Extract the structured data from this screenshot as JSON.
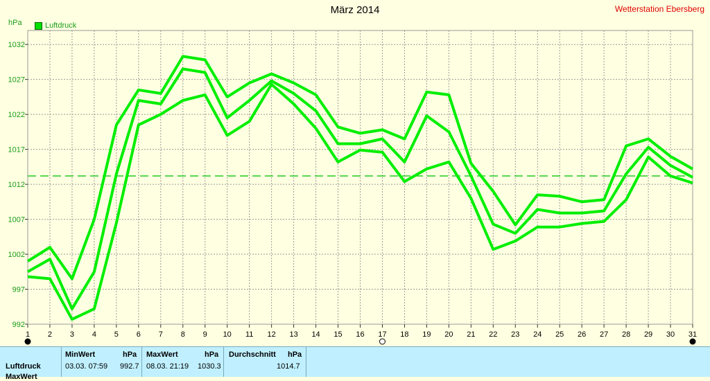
{
  "title": "März 2014",
  "station": "Wetterstation Ebersberg",
  "unit": "hPa",
  "legend": {
    "label": "Luftdruck",
    "color": "#00e000"
  },
  "colors": {
    "background": "#ffffe1",
    "line": "#00ee00",
    "grid": "#9a9a9a",
    "axis_text": "#1a9c1a",
    "average_line": "#22cc22",
    "stats_bg": "#c0f0ff"
  },
  "chart_data": {
    "type": "line",
    "ylim": [
      992,
      1034
    ],
    "yticks": [
      992,
      997,
      1002,
      1007,
      1012,
      1017,
      1022,
      1027,
      1032
    ],
    "xticks": [
      "1",
      "2",
      "3",
      "4",
      "5",
      "6",
      "7",
      "8",
      "9",
      "10",
      "11",
      "12",
      "13",
      "14",
      "15",
      "16",
      "17",
      "18",
      "19",
      "20",
      "21",
      "22",
      "23",
      "24",
      "25",
      "26",
      "27",
      "28",
      "29",
      "30",
      "31"
    ],
    "x": [
      1,
      2,
      3,
      4,
      5,
      6,
      7,
      8,
      9,
      10,
      11,
      12,
      13,
      14,
      15,
      16,
      17,
      18,
      19,
      20,
      21,
      22,
      23,
      24,
      25,
      26,
      27,
      28,
      29,
      30,
      31
    ],
    "grid": true,
    "average": 1013.2,
    "series": [
      {
        "values": [
          1001.0,
          1003.0,
          998.5,
          1007.0,
          1020.5,
          1025.5,
          1025.0,
          1030.3,
          1029.8,
          1024.5,
          1026.5,
          1027.8,
          1026.5,
          1024.8,
          1020.2,
          1019.3,
          1019.8,
          1018.5,
          1025.2,
          1024.8,
          1015.0,
          1011.0,
          1006.2,
          1010.5,
          1010.3,
          1009.5,
          1009.8,
          1017.5,
          1018.5,
          1016.0,
          1014.2
        ]
      },
      {
        "values": [
          999.5,
          1001.3,
          994.2,
          999.5,
          1013.5,
          1024.0,
          1023.5,
          1028.5,
          1028.0,
          1021.5,
          1024.0,
          1026.8,
          1025.0,
          1022.5,
          1017.8,
          1017.8,
          1018.5,
          1015.2,
          1021.8,
          1019.5,
          1013.2,
          1006.3,
          1005.0,
          1008.4,
          1007.9,
          1007.9,
          1008.2,
          1013.5,
          1017.3,
          1014.7,
          1013.0
        ]
      },
      {
        "values": [
          998.8,
          998.5,
          992.7,
          994.2,
          1006.5,
          1020.5,
          1022.0,
          1024.0,
          1024.8,
          1019.0,
          1021.0,
          1026.3,
          1023.5,
          1020.0,
          1015.2,
          1016.9,
          1016.6,
          1012.4,
          1014.2,
          1015.2,
          1010.0,
          1002.7,
          1003.9,
          1005.9,
          1005.9,
          1006.4,
          1006.7,
          1009.8,
          1015.9,
          1013.2,
          1012.2
        ]
      }
    ]
  },
  "stats": {
    "row_label": "Luftdruck",
    "row_label_2": "MaxWert",
    "min": {
      "header": "MinWert",
      "unit": "hPa",
      "when": "03.03.  07:59",
      "value": "992.7"
    },
    "max": {
      "header": "MaxWert",
      "unit": "hPa",
      "when": "08.03.  21:19",
      "value": "1030.3"
    },
    "avg": {
      "header": "Durchschnitt",
      "unit": "hPa",
      "value": "1014.7"
    }
  }
}
